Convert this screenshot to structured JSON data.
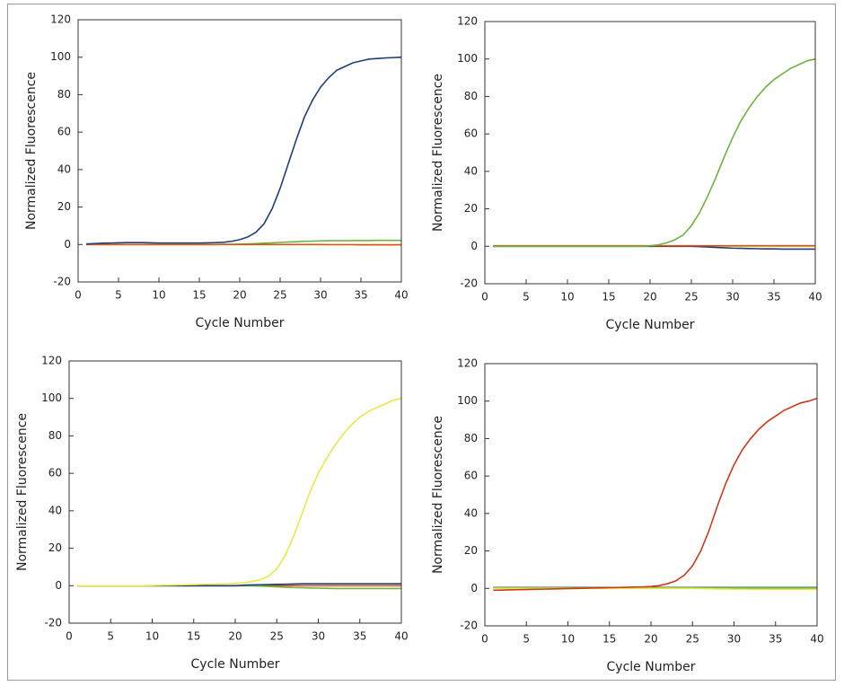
{
  "chart_data": [
    {
      "type": "line",
      "xlabel": "Cycle Number",
      "ylabel": "Normalized Fluorescence",
      "x": [
        1,
        2,
        3,
        4,
        5,
        6,
        7,
        8,
        9,
        10,
        11,
        12,
        13,
        14,
        15,
        16,
        17,
        18,
        19,
        20,
        21,
        22,
        23,
        24,
        25,
        26,
        27,
        28,
        29,
        30,
        31,
        32,
        33,
        34,
        35,
        36,
        37,
        38,
        39,
        40
      ],
      "xlim": [
        0,
        40
      ],
      "xticks": [
        0,
        5,
        10,
        15,
        20,
        25,
        30,
        35,
        40
      ],
      "ylim": [
        -20,
        120
      ],
      "yticks": [
        -20,
        0,
        20,
        40,
        60,
        80,
        100,
        120
      ],
      "series": [
        {
          "color": "#e8e84a",
          "values": [
            0,
            0,
            0,
            0,
            0,
            0,
            0,
            0,
            0,
            0,
            0,
            0,
            0,
            0,
            0,
            0,
            0,
            0,
            0,
            0,
            0,
            0,
            0,
            0,
            0,
            0,
            0,
            0,
            0,
            0,
            0,
            0,
            0,
            0,
            0,
            0,
            0,
            0,
            0,
            0
          ]
        },
        {
          "color": "#6cb33f",
          "values": [
            0,
            0,
            0,
            0,
            0,
            0,
            0,
            0,
            0,
            0,
            0,
            0,
            0,
            0,
            0,
            0,
            0,
            0.1,
            0.1,
            0.2,
            0.3,
            0.5,
            0.7,
            0.9,
            1.1,
            1.3,
            1.5,
            1.7,
            1.8,
            1.9,
            2,
            2,
            2,
            2.1,
            2.1,
            2.1,
            2.2,
            2.2,
            2.2,
            2.2
          ]
        },
        {
          "color": "#d8561c",
          "values": [
            0,
            0,
            0,
            0,
            0,
            0,
            0,
            0,
            0,
            0,
            0,
            0,
            0,
            0,
            0,
            0,
            0,
            0,
            0,
            0,
            0,
            0,
            0,
            0,
            0,
            0,
            0,
            0,
            0,
            0,
            -0.1,
            -0.1,
            -0.1,
            -0.1,
            -0.2,
            -0.2,
            -0.2,
            -0.2,
            -0.2,
            -0.2
          ]
        },
        {
          "color": "#1f3f7a",
          "values": [
            0.3,
            0.5,
            0.7,
            0.8,
            0.9,
            1,
            1,
            1,
            0.9,
            0.8,
            0.8,
            0.8,
            0.8,
            0.8,
            0.8,
            0.9,
            1,
            1.2,
            1.7,
            2.6,
            4,
            6.5,
            11,
            19,
            30,
            43,
            56,
            68,
            77,
            84,
            89,
            93,
            95,
            97,
            98,
            99,
            99.3,
            99.6,
            99.8,
            100
          ]
        }
      ]
    },
    {
      "type": "line",
      "xlabel": "Cycle Number",
      "ylabel": "Normalized Fluorescence",
      "x": [
        1,
        2,
        3,
        4,
        5,
        6,
        7,
        8,
        9,
        10,
        11,
        12,
        13,
        14,
        15,
        16,
        17,
        18,
        19,
        20,
        21,
        22,
        23,
        24,
        25,
        26,
        27,
        28,
        29,
        30,
        31,
        32,
        33,
        34,
        35,
        36,
        37,
        38,
        39,
        40
      ],
      "xlim": [
        0,
        40
      ],
      "xticks": [
        0,
        5,
        10,
        15,
        20,
        25,
        30,
        35,
        40
      ],
      "ylim": [
        -20,
        120
      ],
      "yticks": [
        -20,
        0,
        20,
        40,
        60,
        80,
        100,
        120
      ],
      "series": [
        {
          "color": "#e8e84a",
          "values": [
            0,
            0,
            0,
            0,
            0,
            0,
            0,
            0,
            0,
            0,
            0,
            0,
            0,
            0,
            0,
            0,
            0,
            0,
            0,
            0,
            0,
            0,
            0,
            0,
            0,
            0,
            0,
            0,
            0,
            0,
            0,
            0,
            0,
            0,
            0,
            0,
            0,
            0,
            0,
            0
          ]
        },
        {
          "color": "#1f3f7a",
          "values": [
            0,
            0,
            0,
            0,
            0,
            0,
            0,
            0,
            0,
            0,
            0,
            0,
            0,
            0,
            0,
            0,
            0,
            0,
            0,
            0,
            0,
            0,
            0,
            0,
            0,
            -0.2,
            -0.4,
            -0.6,
            -0.8,
            -1,
            -1.1,
            -1.2,
            -1.3,
            -1.4,
            -1.4,
            -1.5,
            -1.5,
            -1.5,
            -1.5,
            -1.5
          ]
        },
        {
          "color": "#d8561c",
          "values": [
            0.3,
            0.3,
            0.3,
            0.3,
            0.3,
            0.3,
            0.3,
            0.3,
            0.3,
            0.3,
            0.3,
            0.3,
            0.3,
            0.3,
            0.3,
            0.3,
            0.3,
            0.3,
            0.3,
            0.3,
            0.3,
            0.3,
            0.3,
            0.3,
            0.3,
            0.3,
            0.3,
            0.3,
            0.3,
            0.3,
            0.3,
            0.3,
            0.3,
            0.3,
            0.3,
            0.3,
            0.3,
            0.3,
            0.3,
            0.3
          ]
        },
        {
          "color": "#6cb33f",
          "values": [
            0,
            0,
            0,
            0,
            0,
            0,
            0,
            0,
            0,
            0,
            0,
            0,
            0,
            0,
            0,
            0,
            0,
            0,
            0,
            0.3,
            0.8,
            1.8,
            3.5,
            6,
            11,
            18,
            27,
            37,
            48,
            58,
            67,
            74,
            80,
            85,
            89,
            92,
            95,
            97,
            99,
            100
          ]
        }
      ]
    },
    {
      "type": "line",
      "xlabel": "Cycle Number",
      "ylabel": "Normalized Fluorescence",
      "x": [
        1,
        2,
        3,
        4,
        5,
        6,
        7,
        8,
        9,
        10,
        11,
        12,
        13,
        14,
        15,
        16,
        17,
        18,
        19,
        20,
        21,
        22,
        23,
        24,
        25,
        26,
        27,
        28,
        29,
        30,
        31,
        32,
        33,
        34,
        35,
        36,
        37,
        38,
        39,
        40
      ],
      "xlim": [
        0,
        40
      ],
      "xticks": [
        0,
        5,
        10,
        15,
        20,
        25,
        30,
        35,
        40
      ],
      "ylim": [
        -20,
        120
      ],
      "yticks": [
        -20,
        0,
        20,
        40,
        60,
        80,
        100,
        120
      ],
      "series": [
        {
          "color": "#d8561c",
          "values": [
            0,
            0,
            0,
            0,
            0,
            0,
            0,
            0,
            0,
            0,
            0,
            0,
            0,
            0,
            0,
            0,
            0,
            0,
            0,
            0,
            0,
            0,
            0,
            0,
            0,
            0,
            0,
            0,
            0,
            0,
            0,
            0,
            0,
            0,
            0,
            0,
            0,
            0,
            0,
            0
          ]
        },
        {
          "color": "#6cb33f",
          "values": [
            0,
            0,
            0,
            0,
            0,
            0,
            0,
            0,
            0,
            0,
            0,
            0,
            0,
            0,
            0,
            0,
            0,
            0,
            0,
            0,
            0,
            0,
            -0.2,
            -0.4,
            -0.6,
            -0.8,
            -1,
            -1.1,
            -1.2,
            -1.3,
            -1.4,
            -1.5,
            -1.5,
            -1.5,
            -1.5,
            -1.5,
            -1.5,
            -1.5,
            -1.5,
            -1.5
          ]
        },
        {
          "color": "#1f3f7a",
          "values": [
            0,
            0,
            0,
            0,
            0,
            0,
            0,
            0,
            0,
            0,
            0,
            0,
            0,
            0,
            0,
            0,
            0,
            0,
            0,
            0,
            0.3,
            0.4,
            0.5,
            0.6,
            0.7,
            0.8,
            0.9,
            1,
            1,
            1,
            1,
            1,
            1,
            1,
            1,
            1,
            1,
            1,
            1,
            1
          ]
        },
        {
          "color": "#e8e84a",
          "values": [
            0,
            0,
            0,
            0,
            0,
            0,
            0,
            0,
            0,
            0.1,
            0.2,
            0.3,
            0.4,
            0.5,
            0.6,
            0.7,
            0.8,
            0.9,
            1,
            1.2,
            1.6,
            2.2,
            3.2,
            5,
            9,
            16,
            26,
            38,
            50,
            60,
            68,
            75,
            81,
            86,
            90,
            93,
            95,
            97,
            99,
            100
          ]
        }
      ]
    },
    {
      "type": "line",
      "xlabel": "Cycle Number",
      "ylabel": "Normalized Fluorescence",
      "x": [
        1,
        2,
        3,
        4,
        5,
        6,
        7,
        8,
        9,
        10,
        11,
        12,
        13,
        14,
        15,
        16,
        17,
        18,
        19,
        20,
        21,
        22,
        23,
        24,
        25,
        26,
        27,
        28,
        29,
        30,
        31,
        32,
        33,
        34,
        35,
        36,
        37,
        38,
        39,
        40
      ],
      "xlim": [
        0,
        40
      ],
      "xticks": [
        0,
        5,
        10,
        15,
        20,
        25,
        30,
        35,
        40
      ],
      "ylim": [
        -20,
        120
      ],
      "yticks": [
        -20,
        0,
        20,
        40,
        60,
        80,
        100,
        120
      ],
      "series": [
        {
          "color": "#1f3f7a",
          "values": [
            0.5,
            0.5,
            0.5,
            0.5,
            0.5,
            0.5,
            0.5,
            0.5,
            0.5,
            0.5,
            0.5,
            0.5,
            0.5,
            0.5,
            0.5,
            0.5,
            0.5,
            0.5,
            0.5,
            0.5,
            0.5,
            0.5,
            0.5,
            0.5,
            0.5,
            0.5,
            0.5,
            0.5,
            0.5,
            0.5,
            0.5,
            0.5,
            0.5,
            0.5,
            0.5,
            0.5,
            0.5,
            0.5,
            0.5,
            0.5
          ]
        },
        {
          "color": "#6cb33f",
          "values": [
            0.3,
            0.3,
            0.3,
            0.3,
            0.3,
            0.3,
            0.3,
            0.3,
            0.3,
            0.3,
            0.3,
            0.3,
            0.3,
            0.3,
            0.3,
            0.3,
            0.3,
            0.3,
            0.3,
            0.3,
            0.3,
            0.3,
            0.3,
            0.3,
            0.3,
            0.3,
            0.3,
            0.3,
            0.3,
            0.3,
            0.3,
            0.3,
            0.3,
            0.3,
            0.3,
            0.3,
            0.3,
            0.3,
            0.3,
            0.3
          ]
        },
        {
          "color": "#e8e84a",
          "values": [
            0,
            0,
            0,
            0,
            0,
            0,
            0,
            0,
            0,
            0,
            0,
            0,
            0,
            0,
            0,
            0,
            0,
            0,
            0,
            0,
            0,
            0,
            0,
            0,
            0,
            -0.1,
            -0.2,
            -0.3,
            -0.3,
            -0.4,
            -0.4,
            -0.5,
            -0.5,
            -0.5,
            -0.5,
            -0.5,
            -0.5,
            -0.5,
            -0.5,
            -0.5
          ]
        },
        {
          "color": "#cc3a1a",
          "values": [
            -1,
            -0.9,
            -0.8,
            -0.7,
            -0.6,
            -0.5,
            -0.4,
            -0.3,
            -0.2,
            -0.1,
            0,
            0.1,
            0.2,
            0.3,
            0.4,
            0.5,
            0.6,
            0.7,
            0.8,
            1,
            1.5,
            2.5,
            4,
            7,
            12,
            20,
            31,
            44,
            56,
            66,
            74,
            80,
            85,
            89,
            92,
            95,
            97,
            99,
            100,
            101.5
          ]
        }
      ]
    }
  ]
}
